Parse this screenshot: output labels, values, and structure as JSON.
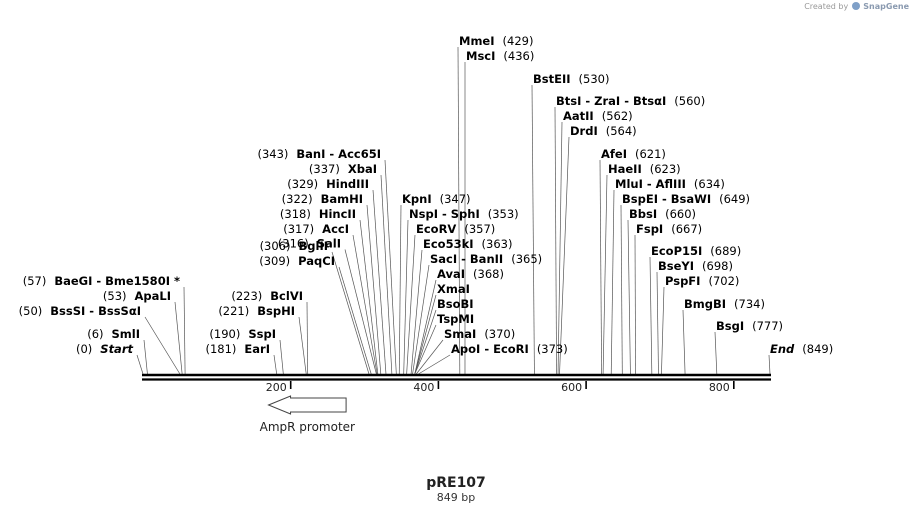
{
  "credit": {
    "text": "Created by",
    "brand": "SnapGene"
  },
  "plasmid": {
    "name": "pRE107",
    "length_label": "849 bp",
    "length": 849
  },
  "axis": {
    "ticks": [
      200,
      400,
      600,
      800
    ]
  },
  "feature": {
    "label": "AmpR promoter",
    "start": 170,
    "end": 275,
    "direction": "reverse"
  },
  "labels": [
    {
      "pos": "(0)",
      "name": "Start",
      "italic": true,
      "side": "L",
      "site": 0
    },
    {
      "pos": "(6)",
      "name": "SmlI",
      "side": "L",
      "site": 6
    },
    {
      "pos": "(50)",
      "name": "BssSI - BssSαI",
      "side": "L",
      "site": 50
    },
    {
      "pos": "(53)",
      "name": "ApaLI",
      "side": "L",
      "site": 53
    },
    {
      "pos": "(57)",
      "name": "BaeGI - Bme1580I *",
      "side": "L",
      "site": 57
    },
    {
      "pos": "(181)",
      "name": "EarI",
      "side": "L",
      "site": 181
    },
    {
      "pos": "(190)",
      "name": "SspI",
      "side": "L",
      "site": 190
    },
    {
      "pos": "(221)",
      "name": "BspHI",
      "side": "L",
      "site": 221
    },
    {
      "pos": "(223)",
      "name": "BclVI",
      "side": "L",
      "site": 223
    },
    {
      "pos": "(306)",
      "name": "BglII",
      "side": "L",
      "site": 306
    },
    {
      "pos": "(309)",
      "name": "PaqCI",
      "side": "L",
      "site": 309
    },
    {
      "pos": "(316)",
      "name": "SalI",
      "side": "L",
      "site": 316
    },
    {
      "pos": "(317)",
      "name": "AccI",
      "side": "L",
      "site": 317
    },
    {
      "pos": "(318)",
      "name": "HincII",
      "side": "L",
      "site": 318
    },
    {
      "pos": "(322)",
      "name": "BamHI",
      "side": "L",
      "site": 322
    },
    {
      "pos": "(329)",
      "name": "HindIII",
      "side": "L",
      "site": 329
    },
    {
      "pos": "(337)",
      "name": "XbaI",
      "side": "L",
      "site": 337
    },
    {
      "pos": "(343)",
      "name": "BanI - Acc65I",
      "side": "L",
      "site": 343
    },
    {
      "pos": "(347)",
      "name": "KpnI",
      "side": "R",
      "site": 347
    },
    {
      "pos": "(353)",
      "name": "NspI - SphI",
      "side": "R",
      "site": 353
    },
    {
      "pos": "(357)",
      "name": "EcoRV",
      "side": "R",
      "site": 357
    },
    {
      "pos": "(363)",
      "name": "Eco53kI",
      "side": "R",
      "site": 363
    },
    {
      "pos": "(365)",
      "name": "SacI - BanII",
      "side": "R",
      "site": 365
    },
    {
      "pos": "(368)",
      "name": "AvaI",
      "side": "R",
      "site": 368
    },
    {
      "pos": "",
      "name": "XmaI",
      "side": "R",
      "site": 368
    },
    {
      "pos": "",
      "name": "BsoBI",
      "side": "R",
      "site": 368
    },
    {
      "pos": "",
      "name": "TspMI",
      "side": "R",
      "site": 368
    },
    {
      "pos": "(370)",
      "name": "SmaI",
      "side": "R",
      "site": 370
    },
    {
      "pos": "(373)",
      "name": "ApoI - EcoRI",
      "side": "R",
      "site": 373
    },
    {
      "pos": "(429)",
      "name": "MmeI",
      "side": "R",
      "site": 429
    },
    {
      "pos": "(436)",
      "name": "MscI",
      "side": "R",
      "site": 436
    },
    {
      "pos": "(530)",
      "name": "BstEII",
      "side": "R",
      "site": 530
    },
    {
      "pos": "(560)",
      "name": "BtsI - ZraI - BtsαI",
      "side": "R",
      "site": 560
    },
    {
      "pos": "(562)",
      "name": "AatII",
      "side": "R",
      "site": 562
    },
    {
      "pos": "(564)",
      "name": "DrdI",
      "side": "R",
      "site": 564
    },
    {
      "pos": "(621)",
      "name": "AfeI",
      "side": "R",
      "site": 621
    },
    {
      "pos": "(623)",
      "name": "HaeII",
      "side": "R",
      "site": 623
    },
    {
      "pos": "(634)",
      "name": "MluI - AflIII",
      "side": "R",
      "site": 634
    },
    {
      "pos": "(649)",
      "name": "BspEI - BsaWI",
      "side": "R",
      "site": 649
    },
    {
      "pos": "(660)",
      "name": "BbsI",
      "side": "R",
      "site": 660
    },
    {
      "pos": "(667)",
      "name": "FspI",
      "side": "R",
      "site": 667
    },
    {
      "pos": "(689)",
      "name": "EcoP15I",
      "side": "R",
      "site": 689
    },
    {
      "pos": "(698)",
      "name": "BseYI",
      "side": "R",
      "site": 698
    },
    {
      "pos": "(702)",
      "name": "PspFI",
      "side": "R",
      "site": 702
    },
    {
      "pos": "(734)",
      "name": "BmgBI",
      "side": "R",
      "site": 734
    },
    {
      "pos": "(777)",
      "name": "BsgI",
      "side": "R",
      "site": 777
    },
    {
      "pos": "(849)",
      "name": "End",
      "italic": true,
      "side": "R",
      "site": 849
    }
  ]
}
